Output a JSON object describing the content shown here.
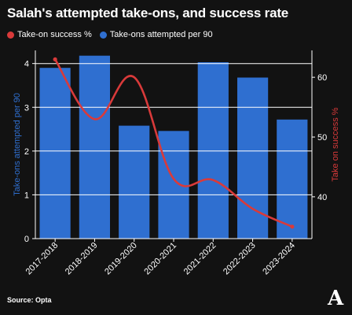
{
  "title": "Salah's attempted take-ons, and success rate",
  "legend": {
    "items": [
      {
        "label": "Take-on success %",
        "color": "#d93a3a"
      },
      {
        "label": "Take-ons attempted per 90",
        "color": "#2f6fd0"
      }
    ]
  },
  "source": "Source: Opta",
  "logo": "A",
  "chart_data": {
    "type": "bar",
    "categories": [
      "2017-2018",
      "2018-2019",
      "2019-2020",
      "2020-2021",
      "2021-2022",
      "2022-2023",
      "2023-2024"
    ],
    "series": [
      {
        "name": "Take-ons attempted per 90",
        "type": "bar",
        "axis": "left",
        "color": "#2f6fd0",
        "values": [
          3.9,
          4.18,
          2.58,
          2.46,
          4.03,
          3.68,
          2.72
        ]
      },
      {
        "name": "Take-on success %",
        "type": "line",
        "axis": "right",
        "color": "#d93a3a",
        "values": [
          63,
          53,
          60,
          43,
          42.8,
          38,
          35
        ]
      }
    ],
    "ylabel": "Take-ons attempted per 90",
    "ylabel_right": "Take on success %",
    "ylim": [
      0,
      4.3
    ],
    "ylim_right": [
      33,
      64.5
    ],
    "yticks": [
      "0",
      "1",
      "2",
      "3",
      "4"
    ],
    "yticks_right": [
      "40",
      "50",
      "60"
    ],
    "grid": true
  }
}
